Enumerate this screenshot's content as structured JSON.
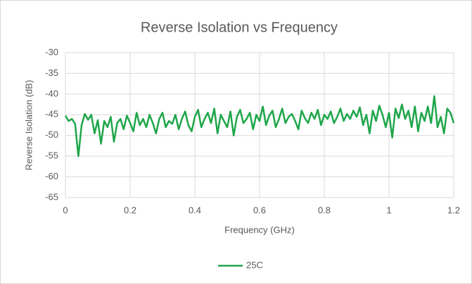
{
  "chart_data": {
    "type": "line",
    "title": "Reverse Isolation vs Frequency",
    "xlabel": "Frequency (GHz)",
    "ylabel": "Reverse Isolation (dB)",
    "x": [
      0,
      0.01,
      0.02,
      0.03,
      0.04,
      0.05,
      0.06,
      0.07,
      0.08,
      0.09,
      0.1,
      0.11,
      0.12,
      0.13,
      0.14,
      0.15,
      0.16,
      0.17,
      0.18,
      0.19,
      0.2,
      0.21,
      0.22,
      0.23,
      0.24,
      0.25,
      0.26,
      0.27,
      0.28,
      0.29,
      0.3,
      0.31,
      0.32,
      0.33,
      0.34,
      0.35,
      0.36,
      0.37,
      0.38,
      0.39,
      0.4,
      0.41,
      0.42,
      0.43,
      0.44,
      0.45,
      0.46,
      0.47,
      0.48,
      0.49,
      0.5,
      0.51,
      0.52,
      0.53,
      0.54,
      0.55,
      0.56,
      0.57,
      0.58,
      0.59,
      0.6,
      0.61,
      0.62,
      0.63,
      0.64,
      0.65,
      0.66,
      0.67,
      0.68,
      0.69,
      0.7,
      0.71,
      0.72,
      0.73,
      0.74,
      0.75,
      0.76,
      0.77,
      0.78,
      0.79,
      0.8,
      0.81,
      0.82,
      0.83,
      0.84,
      0.85,
      0.86,
      0.87,
      0.88,
      0.89,
      0.9,
      0.91,
      0.92,
      0.93,
      0.94,
      0.95,
      0.96,
      0.97,
      0.98,
      0.99,
      1,
      1.01,
      1.02,
      1.03,
      1.04,
      1.05,
      1.06,
      1.07,
      1.08,
      1.09,
      1.1,
      1.11,
      1.12,
      1.13,
      1.14,
      1.15,
      1.16,
      1.17,
      1.18,
      1.19,
      1.2
    ],
    "series": [
      {
        "name": "25C",
        "color": "#1fa64a",
        "values": [
          -45.2,
          -46.5,
          -46.0,
          -47.2,
          -55.0,
          -47.5,
          -44.8,
          -46.2,
          -45.0,
          -49.5,
          -46.3,
          -52.0,
          -46.5,
          -48.0,
          -45.5,
          -51.5,
          -47.0,
          -46.0,
          -48.5,
          -45.2,
          -47.0,
          -49.0,
          -44.5,
          -47.5,
          -46.0,
          -48.0,
          -45.0,
          -47.0,
          -49.5,
          -46.0,
          -44.5,
          -48.0,
          -46.5,
          -47.2,
          -45.0,
          -48.5,
          -46.0,
          -44.2,
          -47.5,
          -49.0,
          -45.5,
          -43.8,
          -48.0,
          -46.0,
          -44.5,
          -47.0,
          -43.5,
          -49.5,
          -45.0,
          -46.5,
          -48.0,
          -44.2,
          -50.0,
          -45.5,
          -43.8,
          -47.0,
          -46.0,
          -44.5,
          -48.5,
          -45.0,
          -46.5,
          -43.0,
          -47.5,
          -45.2,
          -44.0,
          -48.0,
          -46.0,
          -43.5,
          -47.0,
          -45.5,
          -44.8,
          -46.5,
          -48.5,
          -44.0,
          -45.8,
          -47.0,
          -44.5,
          -46.0,
          -43.8,
          -47.5,
          -45.0,
          -46.0,
          -44.2,
          -47.0,
          -45.5,
          -43.5,
          -46.5,
          -44.8,
          -46.0,
          -44.0,
          -45.5,
          -43.2,
          -47.5,
          -45.0,
          -49.5,
          -44.0,
          -46.5,
          -42.8,
          -45.0,
          -48.0,
          -44.5,
          -50.5,
          -43.5,
          -45.8,
          -42.5,
          -46.0,
          -44.0,
          -48.0,
          -43.0,
          -49.0,
          -44.5,
          -46.5,
          -43.0,
          -47.0,
          -40.5,
          -48.0,
          -45.5,
          -49.5,
          -43.5,
          -44.5,
          -47.0
        ]
      }
    ],
    "xlim": [
      0,
      1.2
    ],
    "xticks": [
      0,
      0.2,
      0.4,
      0.6,
      0.8,
      1,
      1.2
    ],
    "ylim": [
      -65,
      -30
    ],
    "yticks": [
      -30,
      -35,
      -40,
      -45,
      -50,
      -55,
      -60,
      -65
    ],
    "grid": true,
    "legend": "bottom"
  }
}
